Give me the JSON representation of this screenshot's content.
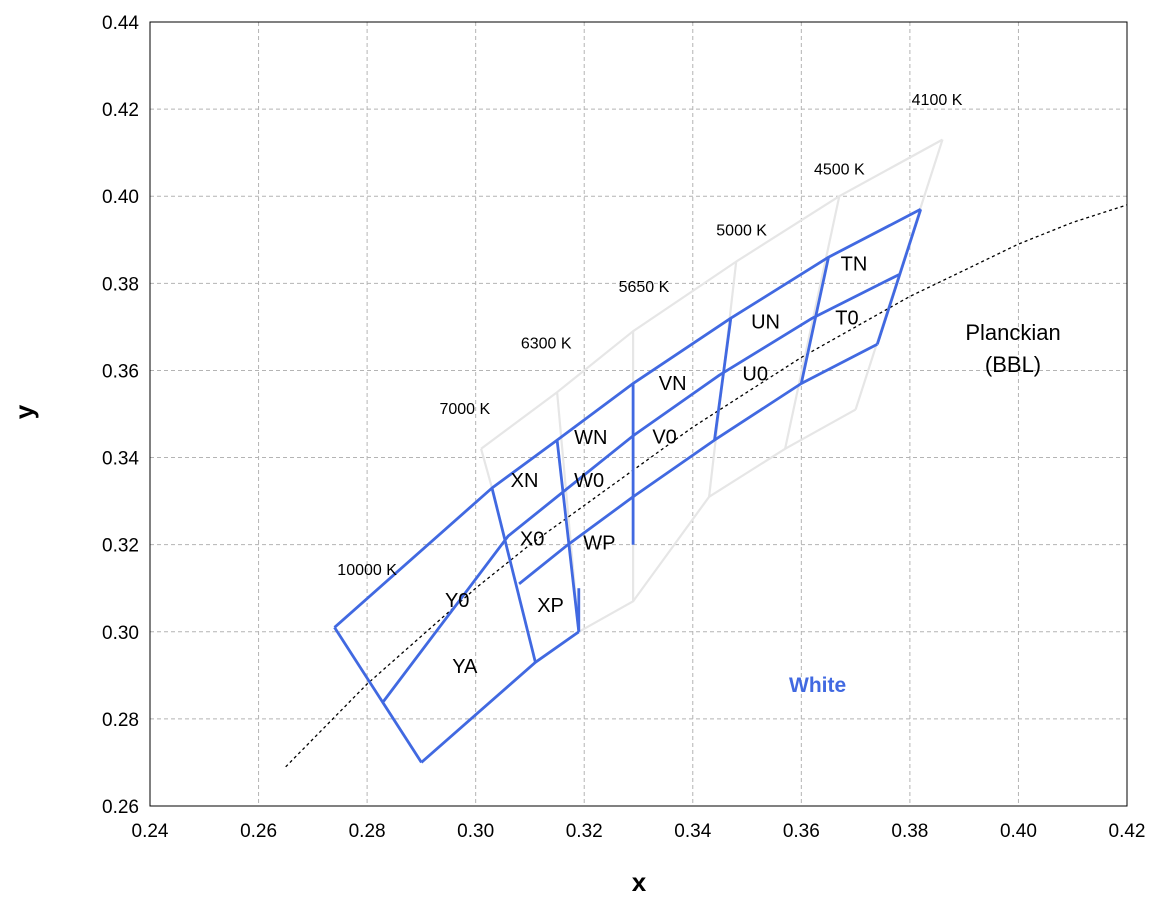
{
  "chart_data": {
    "type": "line",
    "xlabel": "x",
    "ylabel": "y",
    "xlim": [
      0.24,
      0.42
    ],
    "ylim": [
      0.26,
      0.44
    ],
    "xticks": [
      "0.24",
      "0.26",
      "0.28",
      "0.30",
      "0.32",
      "0.34",
      "0.36",
      "0.38",
      "0.40",
      "0.42"
    ],
    "yticks": [
      "0.26",
      "0.28",
      "0.30",
      "0.32",
      "0.34",
      "0.36",
      "0.38",
      "0.40",
      "0.42",
      "0.44"
    ],
    "grid": true,
    "colors": {
      "bins": "#4169e1",
      "outer_grid": "#e6e6e6",
      "planckian": "#000000",
      "gridline": "#b4b4b4"
    },
    "planckian_locus": {
      "x": [
        0.265,
        0.28,
        0.29,
        0.3,
        0.31,
        0.32,
        0.33,
        0.34,
        0.35,
        0.36,
        0.37,
        0.38,
        0.39,
        0.4,
        0.41,
        0.42
      ],
      "y": [
        0.269,
        0.288,
        0.299,
        0.31,
        0.32,
        0.329,
        0.338,
        0.347,
        0.355,
        0.363,
        0.37,
        0.377,
        0.383,
        0.389,
        0.394,
        0.398
      ]
    },
    "outer_grid": {
      "lines": [
        [
          [
            0.301,
            0.342
          ],
          [
            0.315,
            0.355
          ],
          [
            0.329,
            0.369
          ],
          [
            0.348,
            0.385
          ],
          [
            0.367,
            0.4
          ],
          [
            0.386,
            0.413
          ]
        ],
        [
          [
            0.319,
            0.3
          ],
          [
            0.329,
            0.307
          ],
          [
            0.343,
            0.331
          ],
          [
            0.357,
            0.342
          ],
          [
            0.37,
            0.351
          ]
        ],
        [
          [
            0.315,
            0.355
          ],
          [
            0.319,
            0.3
          ]
        ],
        [
          [
            0.329,
            0.369
          ],
          [
            0.329,
            0.307
          ]
        ],
        [
          [
            0.348,
            0.385
          ],
          [
            0.343,
            0.331
          ]
        ],
        [
          [
            0.367,
            0.4
          ],
          [
            0.357,
            0.342
          ]
        ],
        [
          [
            0.386,
            0.413
          ],
          [
            0.37,
            0.351
          ]
        ],
        [
          [
            0.301,
            0.342
          ],
          [
            0.303,
            0.333
          ]
        ]
      ]
    },
    "bin_grid": {
      "lines": [
        [
          [
            0.274,
            0.301
          ],
          [
            0.303,
            0.333
          ],
          [
            0.315,
            0.344
          ],
          [
            0.329,
            0.357
          ],
          [
            0.347,
            0.372
          ],
          [
            0.365,
            0.386
          ],
          [
            0.382,
            0.397
          ]
        ],
        [
          [
            0.283,
            0.284
          ],
          [
            0.306,
            0.322
          ],
          [
            0.316,
            0.332
          ],
          [
            0.329,
            0.345
          ],
          [
            0.345,
            0.359
          ],
          [
            0.362,
            0.372
          ],
          [
            0.378,
            0.382
          ]
        ],
        [
          [
            0.29,
            0.27
          ],
          [
            0.311,
            0.293
          ],
          [
            0.319,
            0.3
          ]
        ],
        [
          [
            0.308,
            0.311
          ],
          [
            0.317,
            0.32
          ],
          [
            0.329,
            0.331
          ],
          [
            0.344,
            0.344
          ],
          [
            0.36,
            0.357
          ],
          [
            0.374,
            0.366
          ]
        ],
        [
          [
            0.274,
            0.301
          ],
          [
            0.29,
            0.27
          ]
        ],
        [
          [
            0.303,
            0.333
          ],
          [
            0.311,
            0.293
          ]
        ],
        [
          [
            0.315,
            0.344
          ],
          [
            0.319,
            0.3
          ]
        ],
        [
          [
            0.319,
            0.31
          ],
          [
            0.319,
            0.3
          ]
        ],
        [
          [
            0.329,
            0.357
          ],
          [
            0.329,
            0.32
          ]
        ],
        [
          [
            0.347,
            0.372
          ],
          [
            0.344,
            0.344
          ]
        ],
        [
          [
            0.365,
            0.386
          ],
          [
            0.36,
            0.357
          ]
        ],
        [
          [
            0.382,
            0.397
          ],
          [
            0.374,
            0.366
          ]
        ]
      ]
    },
    "cct_labels": [
      {
        "text": "4100 K",
        "x": 0.385,
        "y": 0.421
      },
      {
        "text": "4500 K",
        "x": 0.367,
        "y": 0.405
      },
      {
        "text": "5000 K",
        "x": 0.349,
        "y": 0.391
      },
      {
        "text": "5650 K",
        "x": 0.331,
        "y": 0.378
      },
      {
        "text": "6300 K",
        "x": 0.313,
        "y": 0.365
      },
      {
        "text": "7000 K",
        "x": 0.298,
        "y": 0.35
      },
      {
        "text": "10000 K",
        "x": 0.28,
        "y": 0.313
      }
    ],
    "bin_labels": [
      {
        "text": "TN",
        "x": 0.3697,
        "y": 0.3845
      },
      {
        "text": "T0",
        "x": 0.3684,
        "y": 0.3721
      },
      {
        "text": "UN",
        "x": 0.3534,
        "y": 0.3712
      },
      {
        "text": "U0",
        "x": 0.3515,
        "y": 0.3593
      },
      {
        "text": "VN",
        "x": 0.3363,
        "y": 0.3571
      },
      {
        "text": "V0",
        "x": 0.3348,
        "y": 0.3448
      },
      {
        "text": "WN",
        "x": 0.3212,
        "y": 0.3447
      },
      {
        "text": "W0",
        "x": 0.3209,
        "y": 0.3349
      },
      {
        "text": "WP",
        "x": 0.3228,
        "y": 0.3205
      },
      {
        "text": "XN",
        "x": 0.309,
        "y": 0.3349
      },
      {
        "text": "X0",
        "x": 0.3104,
        "y": 0.3214
      },
      {
        "text": "XP",
        "x": 0.3138,
        "y": 0.3061
      },
      {
        "text": "Y0",
        "x": 0.2966,
        "y": 0.3073
      },
      {
        "text": "YA",
        "x": 0.298,
        "y": 0.2922
      }
    ],
    "annotations": [
      {
        "text": "Planckian",
        "x": 0.399,
        "y": 0.3688
      },
      {
        "text": "(BBL)",
        "x": 0.399,
        "y": 0.3615
      },
      {
        "text": "White",
        "x": 0.363,
        "y": 0.288
      }
    ]
  }
}
